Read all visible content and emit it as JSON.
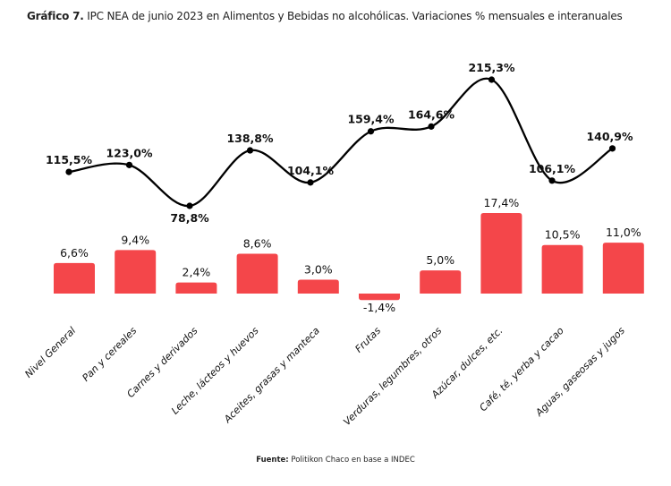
{
  "title": {
    "bold": "Gráfico 7.",
    "text": " IPC NEA de junio 2023 en Alimentos y Bebidas no alcohólicas. Variaciones % mensuales e interanuales"
  },
  "source": {
    "bold": "Fuente:",
    "text": " Politikon Chaco en base a INDEC"
  },
  "chart_data": {
    "type": "bar+line",
    "categories": [
      "Nivel General",
      "Pan y cereales",
      "Carnes y derivados",
      "Leche, lácteos y huevos",
      "Aceites, grasas y manteca",
      "Frutas",
      "Verduras, legumbres, otros",
      "Azúcar, dulces, etc.",
      "Café, té, yerba y cacao",
      "Aguas, gaseosas y jugos"
    ],
    "series": [
      {
        "type": "bar",
        "values": [
          6.6,
          9.4,
          2.4,
          8.6,
          3.0,
          -1.4,
          5.0,
          17.4,
          10.5,
          11.0
        ],
        "labels": [
          "6,6%",
          "9,4%",
          "2,4%",
          "8,6%",
          "3,0%",
          "-1,4%",
          "5,0%",
          "17,4%",
          "10,5%",
          "11,0%"
        ],
        "color": "#f4464a"
      },
      {
        "type": "line",
        "values": [
          115.5,
          123.0,
          78.8,
          138.8,
          104.1,
          159.4,
          164.6,
          215.3,
          106.1,
          140.9
        ],
        "labels": [
          "115,5%",
          "123,0%",
          "78,8%",
          "138,8%",
          "104,1%",
          "159,4%",
          "164,6%",
          "215,3%",
          "106,1%",
          "140,9%"
        ],
        "color": "#000000"
      }
    ],
    "grid": false,
    "legend": "none"
  }
}
